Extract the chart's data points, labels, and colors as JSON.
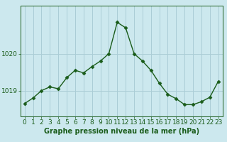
{
  "x": [
    0,
    1,
    2,
    3,
    4,
    5,
    6,
    7,
    8,
    9,
    10,
    11,
    12,
    13,
    14,
    15,
    16,
    17,
    18,
    19,
    20,
    21,
    22,
    23
  ],
  "y": [
    1018.65,
    1018.8,
    1019.0,
    1019.1,
    1019.05,
    1019.35,
    1019.55,
    1019.48,
    1019.65,
    1019.8,
    1020.0,
    1020.85,
    1020.7,
    1020.0,
    1019.8,
    1019.55,
    1019.2,
    1018.9,
    1018.78,
    1018.62,
    1018.62,
    1018.7,
    1018.82,
    1019.25
  ],
  "line_color": "#1a5c1a",
  "marker": "D",
  "marker_size": 2.5,
  "line_width": 1.0,
  "background_color": "#cce8ee",
  "grid_color": "#aacdd6",
  "xlabel": "Graphe pression niveau de la mer (hPa)",
  "xlabel_color": "#1a5c1a",
  "xlabel_fontsize": 7,
  "tick_color": "#1a5c1a",
  "tick_fontsize": 6.5,
  "yticks": [
    1019,
    1020
  ],
  "ylim": [
    1018.3,
    1021.3
  ],
  "xlim": [
    -0.5,
    23.5
  ]
}
